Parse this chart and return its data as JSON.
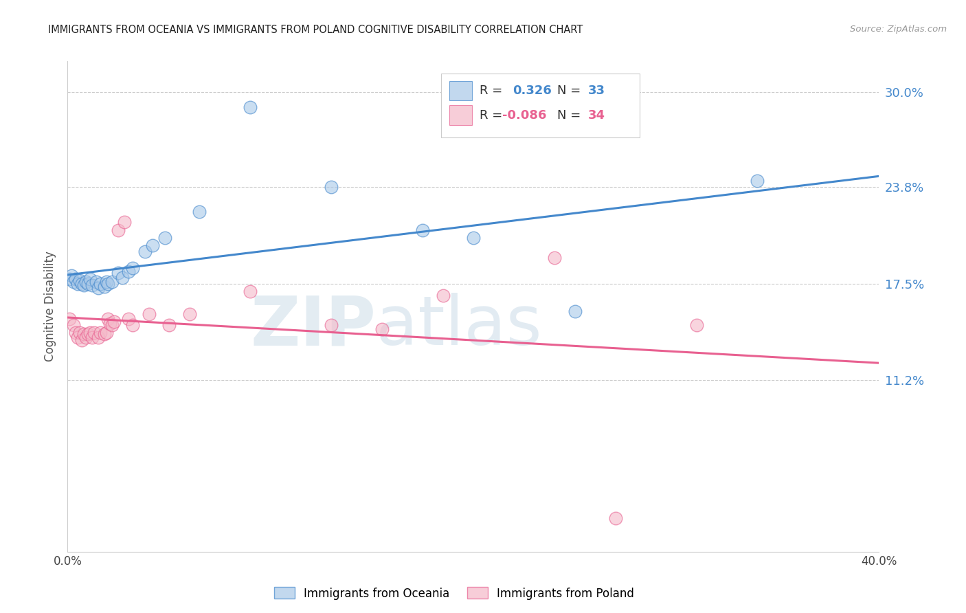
{
  "title": "IMMIGRANTS FROM OCEANIA VS IMMIGRANTS FROM POLAND COGNITIVE DISABILITY CORRELATION CHART",
  "source": "Source: ZipAtlas.com",
  "ylabel": "Cognitive Disability",
  "xlim": [
    0.0,
    0.4
  ],
  "ylim": [
    0.0,
    0.32
  ],
  "yticks": [
    0.112,
    0.175,
    0.238,
    0.3
  ],
  "ytick_labels": [
    "11.2%",
    "17.5%",
    "23.8%",
    "30.0%"
  ],
  "xticks": [
    0.0,
    0.1,
    0.2,
    0.3,
    0.4
  ],
  "xtick_labels": [
    "0.0%",
    "",
    "",
    "",
    "40.0%"
  ],
  "blue_color": "#a8c8e8",
  "pink_color": "#f4b8c8",
  "blue_line_color": "#4488cc",
  "pink_line_color": "#e86090",
  "watermark_zip": "ZIP",
  "watermark_atlas": "atlas",
  "blue_x": [
    0.001,
    0.002,
    0.003,
    0.004,
    0.005,
    0.006,
    0.007,
    0.008,
    0.009,
    0.01,
    0.011,
    0.012,
    0.014,
    0.015,
    0.016,
    0.018,
    0.019,
    0.02,
    0.022,
    0.025,
    0.027,
    0.03,
    0.032,
    0.038,
    0.042,
    0.048,
    0.065,
    0.09,
    0.13,
    0.175,
    0.2,
    0.34,
    0.25
  ],
  "blue_y": [
    0.178,
    0.18,
    0.176,
    0.178,
    0.175,
    0.177,
    0.175,
    0.174,
    0.176,
    0.175,
    0.178,
    0.174,
    0.176,
    0.172,
    0.175,
    0.173,
    0.176,
    0.175,
    0.176,
    0.182,
    0.179,
    0.183,
    0.185,
    0.196,
    0.2,
    0.205,
    0.222,
    0.29,
    0.238,
    0.21,
    0.205,
    0.242,
    0.157
  ],
  "pink_x": [
    0.001,
    0.003,
    0.004,
    0.005,
    0.006,
    0.007,
    0.008,
    0.009,
    0.01,
    0.011,
    0.012,
    0.013,
    0.015,
    0.016,
    0.018,
    0.019,
    0.02,
    0.021,
    0.022,
    0.023,
    0.025,
    0.028,
    0.03,
    0.032,
    0.04,
    0.05,
    0.06,
    0.09,
    0.13,
    0.155,
    0.185,
    0.24,
    0.31,
    0.27
  ],
  "pink_y": [
    0.152,
    0.148,
    0.143,
    0.14,
    0.143,
    0.138,
    0.142,
    0.14,
    0.142,
    0.143,
    0.14,
    0.143,
    0.14,
    0.143,
    0.142,
    0.143,
    0.152,
    0.149,
    0.148,
    0.15,
    0.21,
    0.215,
    0.152,
    0.148,
    0.155,
    0.148,
    0.155,
    0.17,
    0.148,
    0.145,
    0.167,
    0.192,
    0.148,
    0.022
  ]
}
